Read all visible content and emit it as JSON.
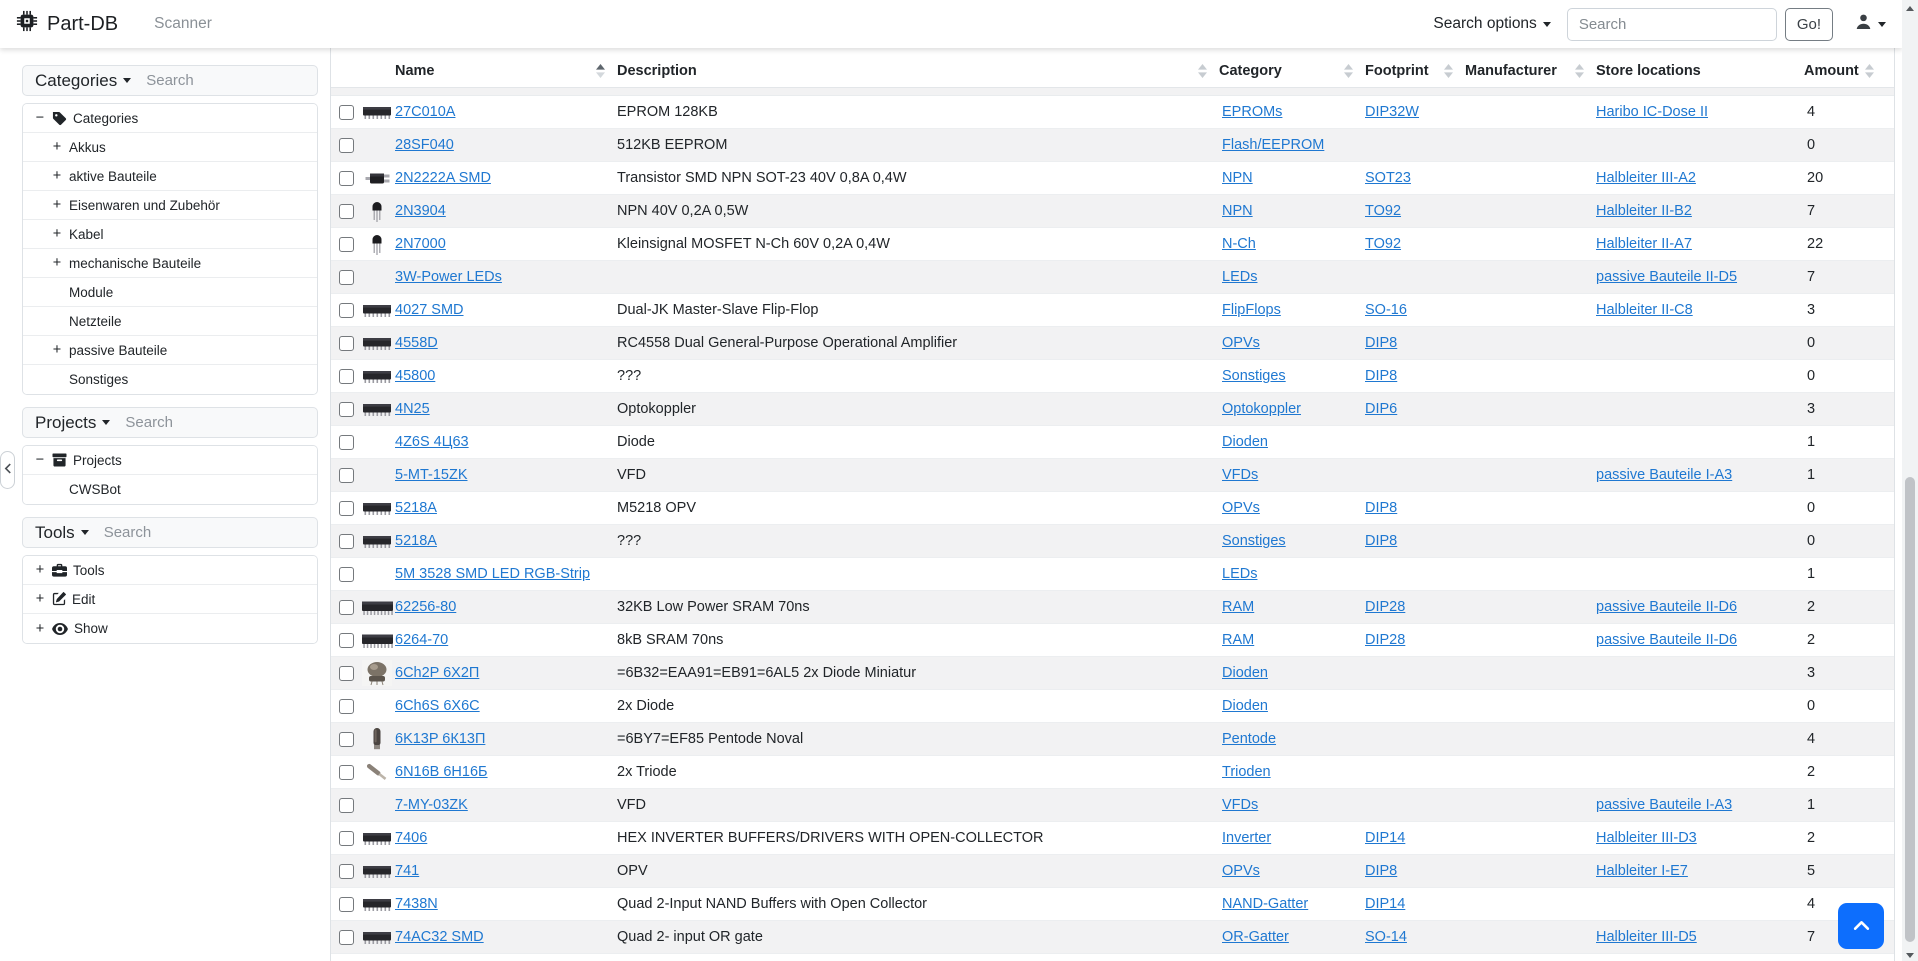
{
  "navbar": {
    "brand": "Part-DB",
    "scanner_label": "Scanner",
    "search_options_label": "Search options",
    "search_placeholder": "Search",
    "go_label": "Go!"
  },
  "sidebar": {
    "panels": [
      {
        "id": "categories",
        "title": "Categories",
        "search_placeholder": "Search",
        "items": [
          {
            "label": "Categories",
            "toggle": "minus",
            "icon": "tag-icon",
            "level": 0
          },
          {
            "label": "Akkus",
            "toggle": "plus",
            "level": 1
          },
          {
            "label": "aktive Bauteile",
            "toggle": "plus",
            "level": 1
          },
          {
            "label": "Eisenwaren und Zubehör",
            "toggle": "plus",
            "level": 1
          },
          {
            "label": "Kabel",
            "toggle": "plus",
            "level": 1
          },
          {
            "label": "mechanische Bauteile",
            "toggle": "plus",
            "level": 1
          },
          {
            "label": "Module",
            "toggle": "none",
            "level": 1
          },
          {
            "label": "Netzteile",
            "toggle": "none",
            "level": 1
          },
          {
            "label": "passive Bauteile",
            "toggle": "plus",
            "level": 1
          },
          {
            "label": "Sonstiges",
            "toggle": "none",
            "level": 1
          }
        ]
      },
      {
        "id": "projects",
        "title": "Projects",
        "search_placeholder": "Search",
        "items": [
          {
            "label": "Projects",
            "toggle": "minus",
            "icon": "archive-icon",
            "level": 0
          },
          {
            "label": "CWSBot",
            "toggle": "none",
            "level": 1
          }
        ]
      },
      {
        "id": "tools",
        "title": "Tools",
        "search_placeholder": "Search",
        "items": [
          {
            "label": "Tools",
            "toggle": "plus",
            "icon": "toolbox-icon",
            "level": 0
          },
          {
            "label": "Edit",
            "toggle": "plus",
            "icon": "pencil-square-icon",
            "level": 0
          },
          {
            "label": "Show",
            "toggle": "plus",
            "icon": "eye-icon",
            "level": 0
          }
        ]
      }
    ]
  },
  "table": {
    "columns": [
      {
        "label": "Name",
        "sort": "asc"
      },
      {
        "label": "Description",
        "sort": "both"
      },
      {
        "label": "Category",
        "sort": "both"
      },
      {
        "label": "Footprint",
        "sort": "both"
      },
      {
        "label": "Manufacturer",
        "sort": "both"
      },
      {
        "label": "Store locations",
        "sort": "none"
      },
      {
        "label": "Amount",
        "sort": "both"
      }
    ],
    "rows": [
      {
        "name": "27C010A",
        "description": "EPROM 128KB",
        "category": "EPROMs",
        "footprint": "DIP32W",
        "manufacturer": "",
        "locations": "Haribo IC-Dose II",
        "amount": "4",
        "img": "dip"
      },
      {
        "name": "28SF040",
        "description": "512KB EEPROM",
        "category": "Flash/EEPROM",
        "footprint": "",
        "manufacturer": "",
        "locations": "",
        "amount": "0",
        "img": "none"
      },
      {
        "name": "2N2222A SMD",
        "description": "Transistor SMD NPN SOT-23 40V 0,8A 0,4W",
        "category": "NPN",
        "footprint": "SOT23",
        "manufacturer": "",
        "locations": "Halbleiter III-A2",
        "amount": "20",
        "img": "smd"
      },
      {
        "name": "2N3904",
        "description": "NPN 40V 0,2A 0,5W",
        "category": "NPN",
        "footprint": "TO92",
        "manufacturer": "",
        "locations": "Halbleiter II-B2",
        "amount": "7",
        "img": "to92"
      },
      {
        "name": "2N7000",
        "description": "Kleinsignal MOSFET N-Ch 60V 0,2A 0,4W",
        "category": "N-Ch",
        "footprint": "TO92",
        "manufacturer": "",
        "locations": "Halbleiter II-A7",
        "amount": "22",
        "img": "to92"
      },
      {
        "name": "3W-Power LEDs",
        "description": "",
        "category": "LEDs",
        "footprint": "",
        "manufacturer": "",
        "locations": "passive Bauteile II-D5",
        "amount": "7",
        "img": "none"
      },
      {
        "name": "4027 SMD",
        "description": "Dual-JK Master-Slave Flip-Flop",
        "category": "FlipFlops",
        "footprint": "SO-16",
        "manufacturer": "",
        "locations": "Halbleiter II-C8",
        "amount": "3",
        "img": "dip"
      },
      {
        "name": "4558D",
        "description": "RC4558 Dual General-Purpose Operational Amplifier",
        "category": "OPVs",
        "footprint": "DIP8",
        "manufacturer": "",
        "locations": "",
        "amount": "0",
        "img": "dip"
      },
      {
        "name": "45800",
        "description": "???",
        "category": "Sonstiges",
        "footprint": "DIP8",
        "manufacturer": "",
        "locations": "",
        "amount": "0",
        "img": "dip"
      },
      {
        "name": "4N25",
        "description": "Optokoppler",
        "category": "Optokoppler",
        "footprint": "DIP6",
        "manufacturer": "",
        "locations": "",
        "amount": "3",
        "img": "dip"
      },
      {
        "name": "4Z6S 4Ц63",
        "description": "Diode",
        "category": "Dioden",
        "footprint": "",
        "manufacturer": "",
        "locations": "",
        "amount": "1",
        "img": "none"
      },
      {
        "name": "5-MT-15ZK",
        "description": "VFD",
        "category": "VFDs",
        "footprint": "",
        "manufacturer": "",
        "locations": "passive Bauteile I-A3",
        "amount": "1",
        "img": "none"
      },
      {
        "name": "5218A",
        "description": "M5218 OPV",
        "category": "OPVs",
        "footprint": "DIP8",
        "manufacturer": "",
        "locations": "",
        "amount": "0",
        "img": "dip"
      },
      {
        "name": "5218A",
        "description": "???",
        "category": "Sonstiges",
        "footprint": "DIP8",
        "manufacturer": "",
        "locations": "",
        "amount": "0",
        "img": "dip"
      },
      {
        "name": "5M 3528 SMD LED RGB-Strip",
        "description": "",
        "category": "LEDs",
        "footprint": "",
        "manufacturer": "",
        "locations": "",
        "amount": "1",
        "img": "none"
      },
      {
        "name": "62256-80",
        "description": "32KB Low Power SRAM 70ns",
        "category": "RAM",
        "footprint": "DIP28",
        "manufacturer": "",
        "locations": "passive Bauteile II-D6",
        "amount": "2",
        "img": "dip-wide"
      },
      {
        "name": "6264-70",
        "description": "8kB SRAM 70ns",
        "category": "RAM",
        "footprint": "DIP28",
        "manufacturer": "",
        "locations": "passive Bauteile II-D6",
        "amount": "2",
        "img": "dip-wide"
      },
      {
        "name": "6Ch2P 6Х2П",
        "description": "=6B32=EAA91=EB91=6AL5 2x Diode Miniatur",
        "category": "Dioden",
        "footprint": "",
        "manufacturer": "",
        "locations": "",
        "amount": "3",
        "img": "tube-photo"
      },
      {
        "name": "6Ch6S 6X6C",
        "description": "2x Diode",
        "category": "Dioden",
        "footprint": "",
        "manufacturer": "",
        "locations": "",
        "amount": "0",
        "img": "none"
      },
      {
        "name": "6K13P 6К13П",
        "description": "=6BY7=EF85 Pentode Noval",
        "category": "Pentode",
        "footprint": "",
        "manufacturer": "",
        "locations": "",
        "amount": "4",
        "img": "tube"
      },
      {
        "name": "6N16B 6Н16Б",
        "description": "2x Triode",
        "category": "Trioden",
        "footprint": "",
        "manufacturer": "",
        "locations": "",
        "amount": "2",
        "img": "tube-diag"
      },
      {
        "name": "7-MY-03ZK",
        "description": "VFD",
        "category": "VFDs",
        "footprint": "",
        "manufacturer": "",
        "locations": "passive Bauteile I-A3",
        "amount": "1",
        "img": "none"
      },
      {
        "name": "7406",
        "description": "HEX INVERTER BUFFERS/DRIVERS WITH OPEN-COLLECTOR",
        "category": "Inverter",
        "footprint": "DIP14",
        "manufacturer": "",
        "locations": "Halbleiter III-D3",
        "amount": "2",
        "img": "dip"
      },
      {
        "name": "741",
        "description": "OPV",
        "category": "OPVs",
        "footprint": "DIP8",
        "manufacturer": "",
        "locations": "Halbleiter I-E7",
        "amount": "5",
        "img": "dip"
      },
      {
        "name": "7438N",
        "description": "Quad 2-Input NAND Buffers with Open Collector",
        "category": "NAND-Gatter",
        "footprint": "DIP14",
        "manufacturer": "",
        "locations": "",
        "amount": "4",
        "img": "dip"
      },
      {
        "name": "74AC32 SMD",
        "description": "Quad 2- input OR gate",
        "category": "OR-Gatter",
        "footprint": "SO-14",
        "manufacturer": "",
        "locations": "Halbleiter III-D5",
        "amount": "7",
        "img": "dip"
      }
    ]
  },
  "colors": {
    "link": "#1f78d1",
    "accent": "#0d6efd",
    "stripe": "#f2f2f3"
  }
}
